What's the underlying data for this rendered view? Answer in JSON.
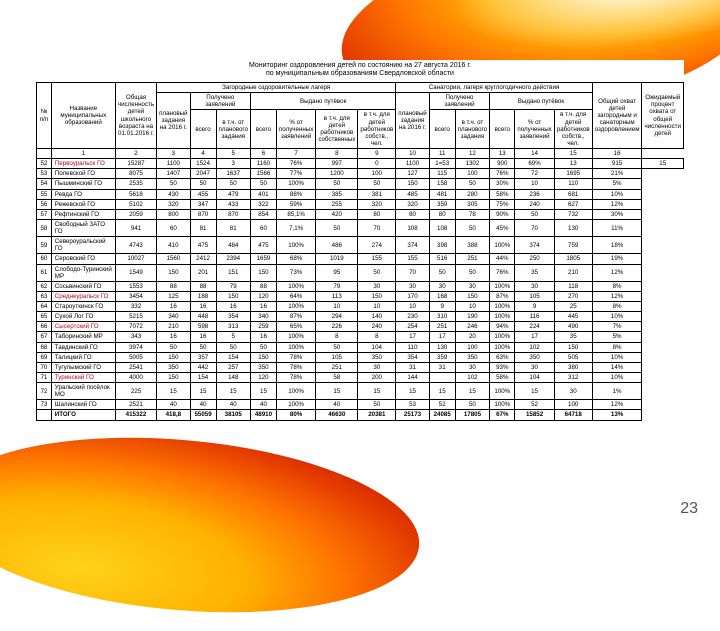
{
  "page_number": "23",
  "title_line1": "Мониторинг оздоровления детей по состоянию на 27 августа 2016 г.",
  "title_line2": "по муниципальным образованиям Свердловской области",
  "header": {
    "num": "№ п/п",
    "name": "Название муниципальных образований",
    "total": "Общая численность детей школьного возраста на 01.01.2016 г.",
    "grp1": "Загородные оздоровительные лагеря",
    "grp1a": "Получено заявлений",
    "grp1b": "Выдано путёвок",
    "grp2": "Санатории, лагеря круглогодичного действия",
    "grp2a": "Получено заявлений",
    "grp2b": "Выдано путёвок",
    "grp3": "Общий охват детей загородным и санаторным оздоровлением",
    "grp4": "Ожидаемый процент охвата от общей численности детей",
    "sub_plan": "плановый задания на 2016 г.",
    "sub_all": "всего",
    "sub_pct_plan": "в т.ч. от планового задания",
    "sub_pct_app": "% от полученных заявлений",
    "sub_pct_own": "в т.ч. для детей работников собственных",
    "sub_cnt_own": "в т.ч. для детей работников собств., чел.",
    "col_nums": [
      "",
      "1",
      "2",
      "3",
      "4",
      "5",
      "6",
      "7",
      "8",
      "9",
      "10",
      "11",
      "12",
      "13",
      "14",
      "15",
      "16"
    ]
  },
  "rows": [
    {
      "n": "52",
      "name": "Первоуральск ГО",
      "red": 1,
      "c": [
        "15287",
        "1100",
        "1524",
        "3",
        "1160",
        "76%",
        "997",
        "0",
        "1100",
        "1=53",
        "1302",
        "900",
        "69%",
        "13",
        "915",
        "15"
      ]
    },
    {
      "n": "53",
      "name": "Полевской ГО",
      "c": [
        "8075",
        "1407",
        "2047",
        "1637",
        "1566",
        "77%",
        "1200",
        "100",
        "127",
        "115",
        "100",
        "76%",
        "72",
        "1695",
        "21%"
      ]
    },
    {
      "n": "54",
      "name": "Пышминский ГО",
      "c": [
        "2535",
        "50",
        "50",
        "50",
        "50",
        "100%",
        "50",
        "50",
        "150",
        "158",
        "50",
        "30%",
        "10",
        "110",
        "5%"
      ]
    },
    {
      "n": "55",
      "name": "Ревда ГО",
      "c": [
        "5618",
        "430",
        "455",
        "479",
        "401",
        "88%",
        "385",
        "381",
        "485",
        "481",
        "280",
        "58%",
        "236",
        "681",
        "10%"
      ]
    },
    {
      "n": "56",
      "name": "Режевской ГО",
      "c": [
        "5102",
        "320",
        "347",
        "433",
        "322",
        "59%",
        "255",
        "320",
        "320",
        "359",
        "305",
        "75%",
        "240",
        "627",
        "12%"
      ]
    },
    {
      "n": "57",
      "name": "Рефтинский ГО",
      "c": [
        "2059",
        "800",
        "870",
        "870",
        "854",
        "85,1%",
        "420",
        "80",
        "80",
        "80",
        "78",
        "90%",
        "50",
        "732",
        "30%"
      ]
    },
    {
      "n": "58",
      "name": "Свободный ЗАТО ГО",
      "c": [
        "941",
        "60",
        "81",
        "81",
        "60",
        "7,1%",
        "50",
        "70",
        "108",
        "108",
        "50",
        "45%",
        "70",
        "130",
        "11%"
      ]
    },
    {
      "n": "59",
      "name": "Североуральский ГО",
      "c": [
        "4743",
        "410",
        "475",
        "484",
        "475",
        "100%",
        "486",
        "274",
        "374",
        "398",
        "388",
        "100%",
        "374",
        "759",
        "18%"
      ]
    },
    {
      "n": "60",
      "name": "Серовский ГО",
      "c": [
        "10027",
        "1560",
        "2412",
        "2394",
        "1659",
        "68%",
        "1019",
        "155",
        "155",
        "516",
        "251",
        "44%",
        "250",
        "1805",
        "19%"
      ]
    },
    {
      "n": "61",
      "name": "Слободо-Туринский МР",
      "c": [
        "1549",
        "150",
        "201",
        "151",
        "150",
        "73%",
        "95",
        "50",
        "70",
        "50",
        "50",
        "76%",
        "35",
        "210",
        "12%"
      ]
    },
    {
      "n": "62",
      "name": "Сосьвинский ГО",
      "c": [
        "1553",
        "88",
        "88",
        "79",
        "88",
        "100%",
        "79",
        "30",
        "30",
        "30",
        "30",
        "100%",
        "30",
        "118",
        "8%"
      ]
    },
    {
      "n": "63",
      "name": "Среднеуральск ГО",
      "red": 1,
      "c": [
        "3454",
        "125",
        "188",
        "150",
        "120",
        "64%",
        "113",
        "150",
        "170",
        "168",
        "150",
        "87%",
        "105",
        "270",
        "12%"
      ]
    },
    {
      "n": "64",
      "name": "Староуткинск ГО",
      "c": [
        "332",
        "16",
        "16",
        "16",
        "16",
        "100%",
        "10",
        "10",
        "10",
        "9",
        "10",
        "100%",
        "9",
        "25",
        "8%"
      ]
    },
    {
      "n": "65",
      "name": "Сухой Лог ГО",
      "c": [
        "5215",
        "340",
        "448",
        "354",
        "340",
        "87%",
        "294",
        "140",
        "230",
        "310",
        "190",
        "100%",
        "116",
        "445",
        "10%"
      ]
    },
    {
      "n": "66",
      "name": "Сысертский ГО",
      "red": 1,
      "c": [
        "7072",
        "210",
        "598",
        "313",
        "259",
        "65%",
        "226",
        "240",
        "254",
        "251",
        "246",
        "94%",
        "224",
        "490",
        "7%"
      ]
    },
    {
      "n": "67",
      "name": "Таборинский МР",
      "c": [
        "343",
        "16",
        "16",
        "5",
        "16",
        "100%",
        "8",
        "8",
        "17",
        "17",
        "20",
        "100%",
        "17",
        "35",
        "5%"
      ]
    },
    {
      "n": "68",
      "name": "Тавдинский ГО",
      "c": [
        "3974",
        "50",
        "50",
        "50",
        "50",
        "100%",
        "50",
        "104",
        "110",
        "130",
        "100",
        "100%",
        "102",
        "150",
        "8%"
      ]
    },
    {
      "n": "69",
      "name": "Талицкий ГО",
      "c": [
        "5005",
        "150",
        "357",
        "154",
        "150",
        "78%",
        "105",
        "350",
        "354",
        "359",
        "350",
        "63%",
        "350",
        "505",
        "10%"
      ]
    },
    {
      "n": "70",
      "name": "Тугулымский ГО",
      "c": [
        "2541",
        "350",
        "442",
        "257",
        "350",
        "78%",
        "251",
        "30",
        "31",
        "31",
        "30",
        "93%",
        "30",
        "380",
        "14%"
      ]
    },
    {
      "n": "71",
      "name": "Туринский ГО",
      "red": 1,
      "c": [
        "4000",
        "150",
        "154",
        "148",
        "120",
        "78%",
        "58",
        "200",
        "144",
        "",
        "102",
        "58%",
        "104",
        "312",
        "10%"
      ]
    },
    {
      "n": "72",
      "name": "Уральский посёлок МО",
      "c": [
        "225",
        "15",
        "15",
        "15",
        "15",
        "100%",
        "15",
        "15",
        "15",
        "15",
        "15",
        "100%",
        "15",
        "30",
        "1%"
      ]
    },
    {
      "n": "73",
      "name": "Шалинский ГО",
      "c": [
        "2521",
        "40",
        "40",
        "40",
        "40",
        "100%",
        "40",
        "50",
        "53",
        "52",
        "50",
        "100%",
        "52",
        "100",
        "12%"
      ]
    }
  ],
  "total_row": {
    "name": "ИТОГО",
    "c": [
      "415322",
      "418,8",
      "55059",
      "38105",
      "48910",
      "80%",
      "46630",
      "20381",
      "25173",
      "24085",
      "17805",
      "67%",
      "15852",
      "64718",
      "13%"
    ]
  }
}
